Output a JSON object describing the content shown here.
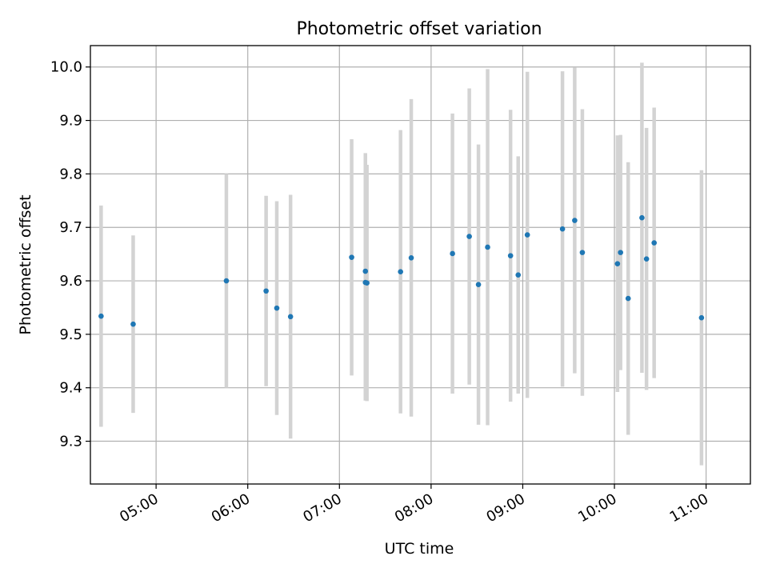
{
  "chart_data": {
    "type": "scatter",
    "title": "Photometric offset variation",
    "xlabel": "UTC time",
    "ylabel": "Photometric offset",
    "x_ticks": [
      "05:00",
      "06:00",
      "07:00",
      "08:00",
      "09:00",
      "10:00",
      "11:00"
    ],
    "y_ticks": [
      "9.3",
      "9.4",
      "9.5",
      "9.6",
      "9.7",
      "9.8",
      "9.9",
      "10.0"
    ],
    "xlim": [
      "04:17",
      "11:29"
    ],
    "ylim": [
      9.22,
      10.04
    ],
    "grid": true,
    "x_tick_rotation": 30,
    "colors": {
      "points": "#1f77b4",
      "errorbars": "#d3d3d3",
      "grid": "#b0b0b0"
    },
    "series": [
      {
        "points": [
          {
            "x": "04:24",
            "y": 9.534,
            "err": 0.207
          },
          {
            "x": "04:45",
            "y": 9.519,
            "err": 0.166
          },
          {
            "x": "05:46",
            "y": 9.6,
            "err": 0.2
          },
          {
            "x": "06:12",
            "y": 9.581,
            "err": 0.178
          },
          {
            "x": "06:19",
            "y": 9.549,
            "err": 0.2
          },
          {
            "x": "06:28",
            "y": 9.533,
            "err": 0.228
          },
          {
            "x": "07:08",
            "y": 9.644,
            "err": 0.221
          },
          {
            "x": "07:17",
            "y": 9.597,
            "err": 0.221
          },
          {
            "x": "07:17",
            "y": 9.618,
            "err": 0.221
          },
          {
            "x": "07:18",
            "y": 9.596,
            "err": 0.221
          },
          {
            "x": "07:40",
            "y": 9.617,
            "err": 0.265
          },
          {
            "x": "07:47",
            "y": 9.643,
            "err": 0.297
          },
          {
            "x": "08:14",
            "y": 9.651,
            "err": 0.262
          },
          {
            "x": "08:25",
            "y": 9.683,
            "err": 0.277
          },
          {
            "x": "08:31",
            "y": 9.593,
            "err": 0.262
          },
          {
            "x": "08:37",
            "y": 9.663,
            "err": 0.333
          },
          {
            "x": "08:52",
            "y": 9.647,
            "err": 0.273
          },
          {
            "x": "08:57",
            "y": 9.611,
            "err": 0.222
          },
          {
            "x": "09:03",
            "y": 9.686,
            "err": 0.305
          },
          {
            "x": "09:26",
            "y": 9.697,
            "err": 0.295
          },
          {
            "x": "09:34",
            "y": 9.713,
            "err": 0.286
          },
          {
            "x": "09:39",
            "y": 9.653,
            "err": 0.268
          },
          {
            "x": "10:02",
            "y": 9.632,
            "err": 0.24
          },
          {
            "x": "10:04",
            "y": 9.653,
            "err": 0.22
          },
          {
            "x": "10:09",
            "y": 9.567,
            "err": 0.255
          },
          {
            "x": "10:18",
            "y": 9.718,
            "err": 0.29
          },
          {
            "x": "10:21",
            "y": 9.641,
            "err": 0.245
          },
          {
            "x": "10:26",
            "y": 9.671,
            "err": 0.253
          },
          {
            "x": "10:57",
            "y": 9.531,
            "err": 0.276
          }
        ]
      }
    ]
  }
}
